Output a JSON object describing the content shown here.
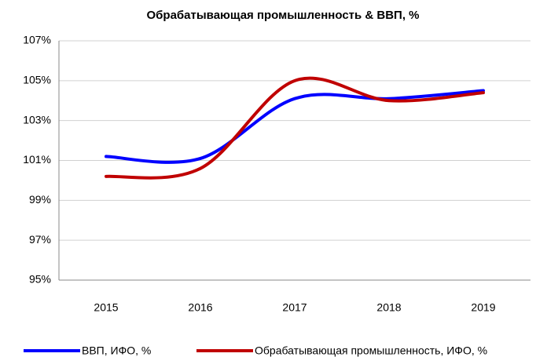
{
  "chart_data": {
    "type": "line",
    "title": "Обрабатывающая промышленность  & ВВП, %",
    "categories": [
      "2015",
      "2016",
      "2017",
      "2018",
      "2019"
    ],
    "series": [
      {
        "name": "ВВП, ИФО, %",
        "color": "#0000ff",
        "values": [
          101.2,
          101.1,
          104.1,
          104.1,
          104.5
        ]
      },
      {
        "name": "Обрабатывающая промышленность, ИФО, %",
        "color": "#c00000",
        "values": [
          100.2,
          100.6,
          105.0,
          104.0,
          104.4
        ]
      }
    ],
    "ylim": [
      95,
      107
    ],
    "yticks": [
      {
        "value": 95,
        "label": "95%"
      },
      {
        "value": 97,
        "label": "97%"
      },
      {
        "value": 99,
        "label": "99%"
      },
      {
        "value": 101,
        "label": "101%"
      },
      {
        "value": 103,
        "label": "103%"
      },
      {
        "value": 105,
        "label": "105%"
      },
      {
        "value": 107,
        "label": "107%"
      }
    ],
    "grid": true,
    "legend": "bottom"
  }
}
